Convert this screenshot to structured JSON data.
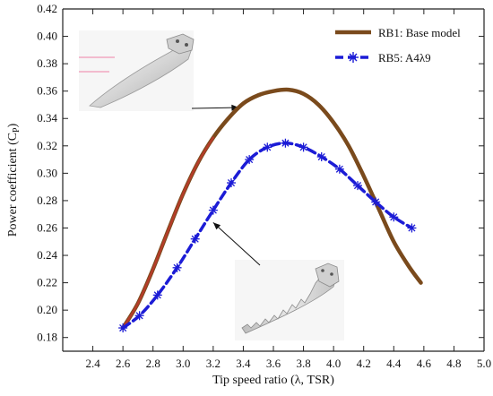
{
  "chart_data": {
    "type": "line",
    "title": "",
    "xlabel": "Tip speed ratio (λ, TSR)",
    "ylabel_main": "Power coefficient (C",
    "ylabel_sub": "P",
    "ylabel_close": ")",
    "xlim": [
      2.2,
      5.0
    ],
    "ylim": [
      0.17,
      0.42
    ],
    "xticks": [
      "2.4",
      "2.6",
      "2.8",
      "3.0",
      "3.2",
      "3.4",
      "3.6",
      "3.8",
      "4.0",
      "4.2",
      "4.4",
      "4.6",
      "4.8",
      "5.0"
    ],
    "yticks": [
      "0.18",
      "0.20",
      "0.22",
      "0.24",
      "0.26",
      "0.28",
      "0.30",
      "0.32",
      "0.34",
      "0.36",
      "0.38",
      "0.40",
      "0.42"
    ],
    "grid": false,
    "legend_position": "top-right",
    "series": [
      {
        "name": "RB1: Base model",
        "color": "#7a4a1c",
        "accent_color": "#c0392b",
        "marker": "none",
        "x": [
          2.6,
          2.7,
          2.8,
          2.9,
          3.0,
          3.1,
          3.2,
          3.3,
          3.4,
          3.5,
          3.6,
          3.7,
          3.8,
          3.9,
          4.0,
          4.1,
          4.2,
          4.3,
          4.4,
          4.5,
          4.58
        ],
        "y": [
          0.187,
          0.205,
          0.23,
          0.258,
          0.285,
          0.308,
          0.326,
          0.34,
          0.351,
          0.357,
          0.36,
          0.361,
          0.358,
          0.35,
          0.337,
          0.32,
          0.298,
          0.274,
          0.25,
          0.232,
          0.22
        ]
      },
      {
        "name": "RB5: A4λ9",
        "color": "#1c1cd6",
        "marker": "asterisk",
        "x": [
          2.6,
          2.71,
          2.83,
          2.96,
          3.08,
          3.2,
          3.32,
          3.44,
          3.56,
          3.68,
          3.8,
          3.92,
          4.04,
          4.16,
          4.28,
          4.4,
          4.52
        ],
        "y": [
          0.187,
          0.196,
          0.211,
          0.231,
          0.252,
          0.273,
          0.293,
          0.31,
          0.319,
          0.322,
          0.319,
          0.312,
          0.303,
          0.291,
          0.279,
          0.268,
          0.26
        ]
      }
    ],
    "annotations": [
      {
        "target_series": "RB1: Base model",
        "x": 3.37,
        "y": 0.348
      },
      {
        "target_series": "RB5: A4λ9",
        "x": 3.2,
        "y": 0.264
      }
    ]
  },
  "images": [
    {
      "name": "base-blade-render",
      "description_icon": "blade-icon"
    },
    {
      "name": "serrated-blade-render",
      "description_icon": "serrated-blade-icon"
    }
  ]
}
